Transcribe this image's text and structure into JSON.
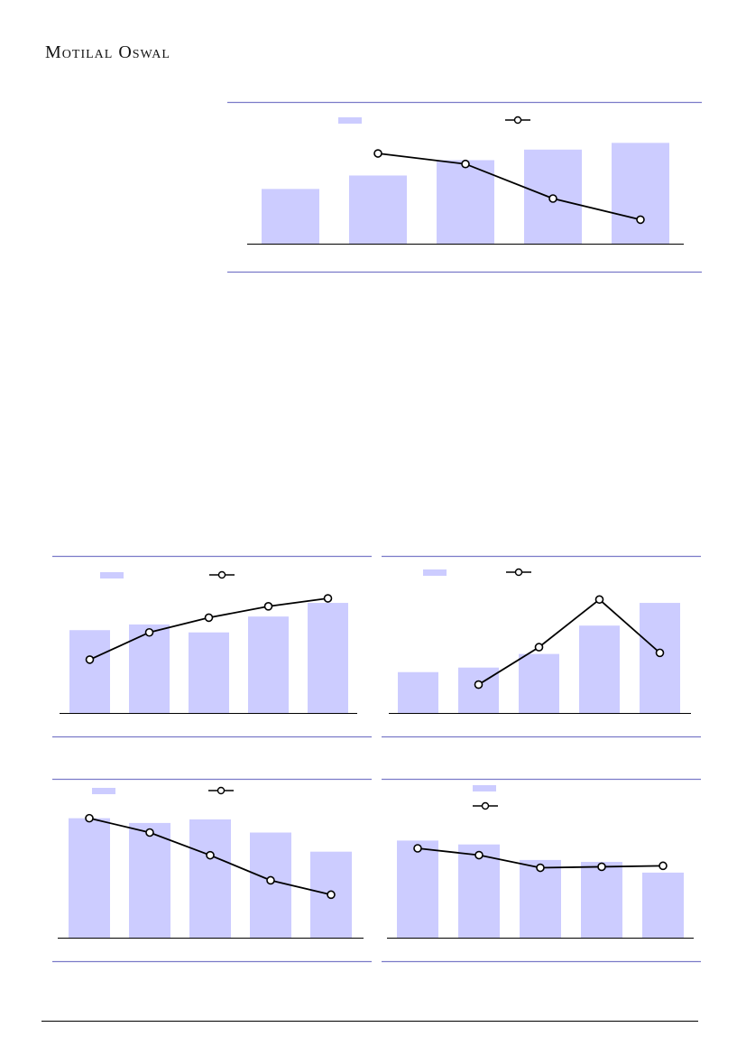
{
  "header": {
    "brand": "Motilal Oswal"
  },
  "colors": {
    "bar": "#ccccff",
    "line": "#000000",
    "rule": "#7a7ac8",
    "marker_fill": "#ffffff"
  },
  "chart_data": [
    {
      "type": "bar",
      "title": "",
      "categories": [
        "",
        "",
        "",
        "",
        ""
      ],
      "series": [
        {
          "kind": "bar",
          "values": [
            57,
            71,
            87,
            98,
            105
          ]
        },
        {
          "kind": "line",
          "values": [
            null,
            94,
            83,
            47,
            25
          ]
        }
      ],
      "ylim": [
        0,
        110
      ],
      "grid": false,
      "legend": "top"
    },
    {
      "type": "bar",
      "title": "",
      "categories": [
        "",
        "",
        "",
        "",
        ""
      ],
      "series": [
        {
          "kind": "bar",
          "values": [
            73,
            78,
            71,
            85,
            97
          ]
        },
        {
          "kind": "line",
          "values": [
            47,
            71,
            84,
            94,
            101
          ]
        }
      ],
      "ylim": [
        0,
        105
      ],
      "grid": false,
      "legend": "top"
    },
    {
      "type": "bar",
      "title": "",
      "categories": [
        "",
        "",
        "",
        "",
        ""
      ],
      "series": [
        {
          "kind": "bar",
          "values": [
            36,
            40,
            52,
            77,
            97
          ]
        },
        {
          "kind": "line",
          "values": [
            null,
            25,
            58,
            100,
            53
          ]
        }
      ],
      "ylim": [
        0,
        105
      ],
      "grid": false,
      "legend": "top"
    },
    {
      "type": "bar",
      "title": "",
      "categories": [
        "",
        "",
        "",
        "",
        ""
      ],
      "series": [
        {
          "kind": "bar",
          "values": [
            100,
            96,
            99,
            88,
            72
          ]
        },
        {
          "kind": "line",
          "values": [
            100,
            88,
            69,
            48,
            36
          ]
        }
      ],
      "ylim": [
        0,
        105
      ],
      "grid": false,
      "legend": "top"
    },
    {
      "type": "bar",
      "title": "",
      "categories": [
        "",
        "",
        "",
        "",
        ""
      ],
      "series": [
        {
          "kind": "bar",
          "values": [
            100,
            96,
            80,
            78,
            67
          ]
        },
        {
          "kind": "line",
          "values": [
            92,
            85,
            72,
            73,
            74
          ]
        }
      ],
      "ylim": [
        0,
        105
      ],
      "grid": false,
      "legend": "top-stacked"
    }
  ]
}
